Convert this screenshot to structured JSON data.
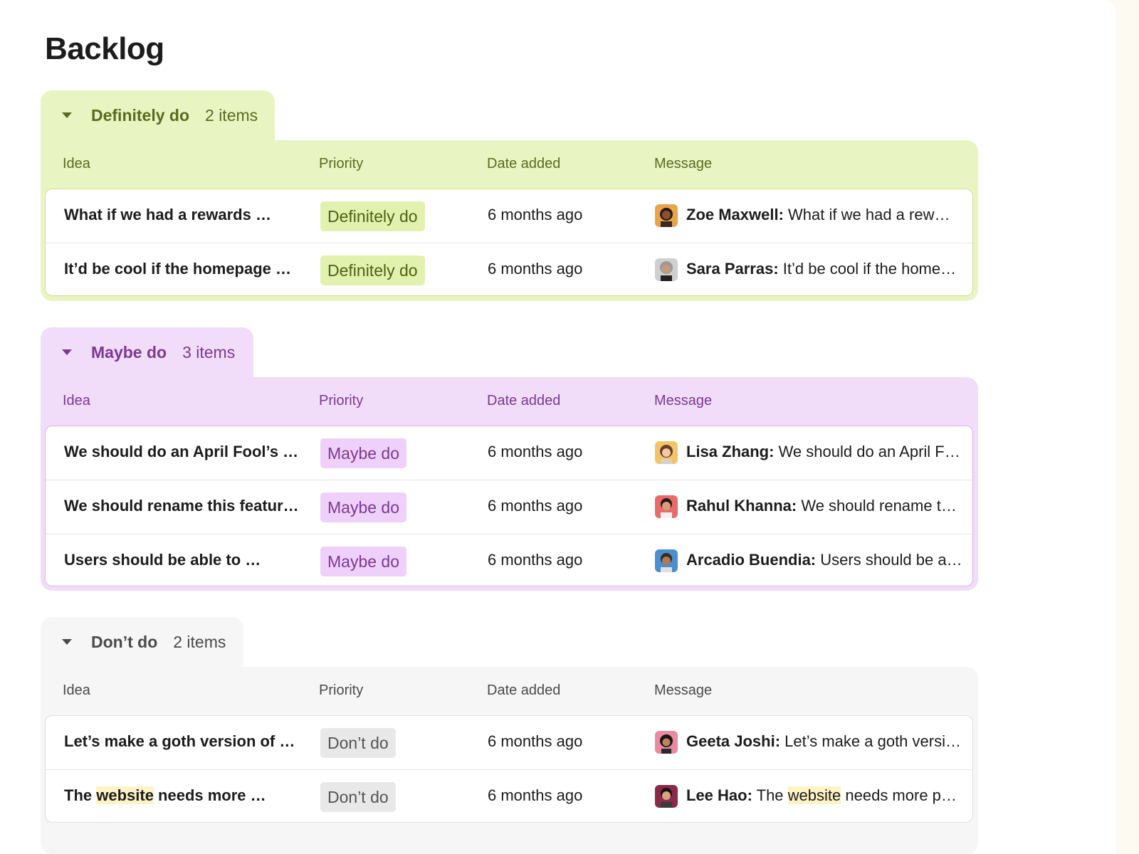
{
  "page_title": "Backlog",
  "columns": {
    "idea": "Idea",
    "priority": "Priority",
    "date_added": "Date added",
    "message": "Message"
  },
  "groups": [
    {
      "name": "Definitely do",
      "count": "2 items",
      "accent": "#5a6b1f",
      "rows": [
        {
          "idea": "What if we had a rewards …",
          "priority": "Definitely do",
          "date": "6 months ago",
          "author": "Zoe Maxwell:",
          "message": " What if we had a rew…"
        },
        {
          "idea": "It’d be cool if the homepage …",
          "priority": "Definitely do",
          "date": "6 months ago",
          "author": "Sara Parras:",
          "message": " It’d be cool if the home…"
        }
      ]
    },
    {
      "name": "Maybe do",
      "count": "3 items",
      "accent": "#7b3a90",
      "rows": [
        {
          "idea": "We should do an April Fool’s …",
          "priority": "Maybe do",
          "date": "6 months ago",
          "author": "Lisa Zhang:",
          "message": " We should do an April F…"
        },
        {
          "idea": "We should rename this featur…",
          "priority": "Maybe do",
          "date": "6 months ago",
          "author": "Rahul Khanna:",
          "message": " We should rename t…"
        },
        {
          "idea": "Users should be able to …",
          "priority": "Maybe do",
          "date": "6 months ago",
          "author": "Arcadio Buendia:",
          "message": " Users should be a…"
        }
      ]
    },
    {
      "name": "Don’t do",
      "count": "2 items",
      "accent": "#4a4a4a",
      "rows": [
        {
          "idea": "Let’s make a goth version of …",
          "priority": "Don’t do",
          "date": "6 months ago",
          "author": "Geeta Joshi:",
          "message": " Let’s make a goth versi…"
        },
        {
          "idea_pre": "The ",
          "idea_hl": "website",
          "idea_post": " needs more …",
          "priority": "Don’t do",
          "date": "6 months ago",
          "author": "Lee Hao:",
          "message_pre": " The ",
          "message_hl": "website",
          "message_post": " needs more p…"
        }
      ]
    }
  ]
}
